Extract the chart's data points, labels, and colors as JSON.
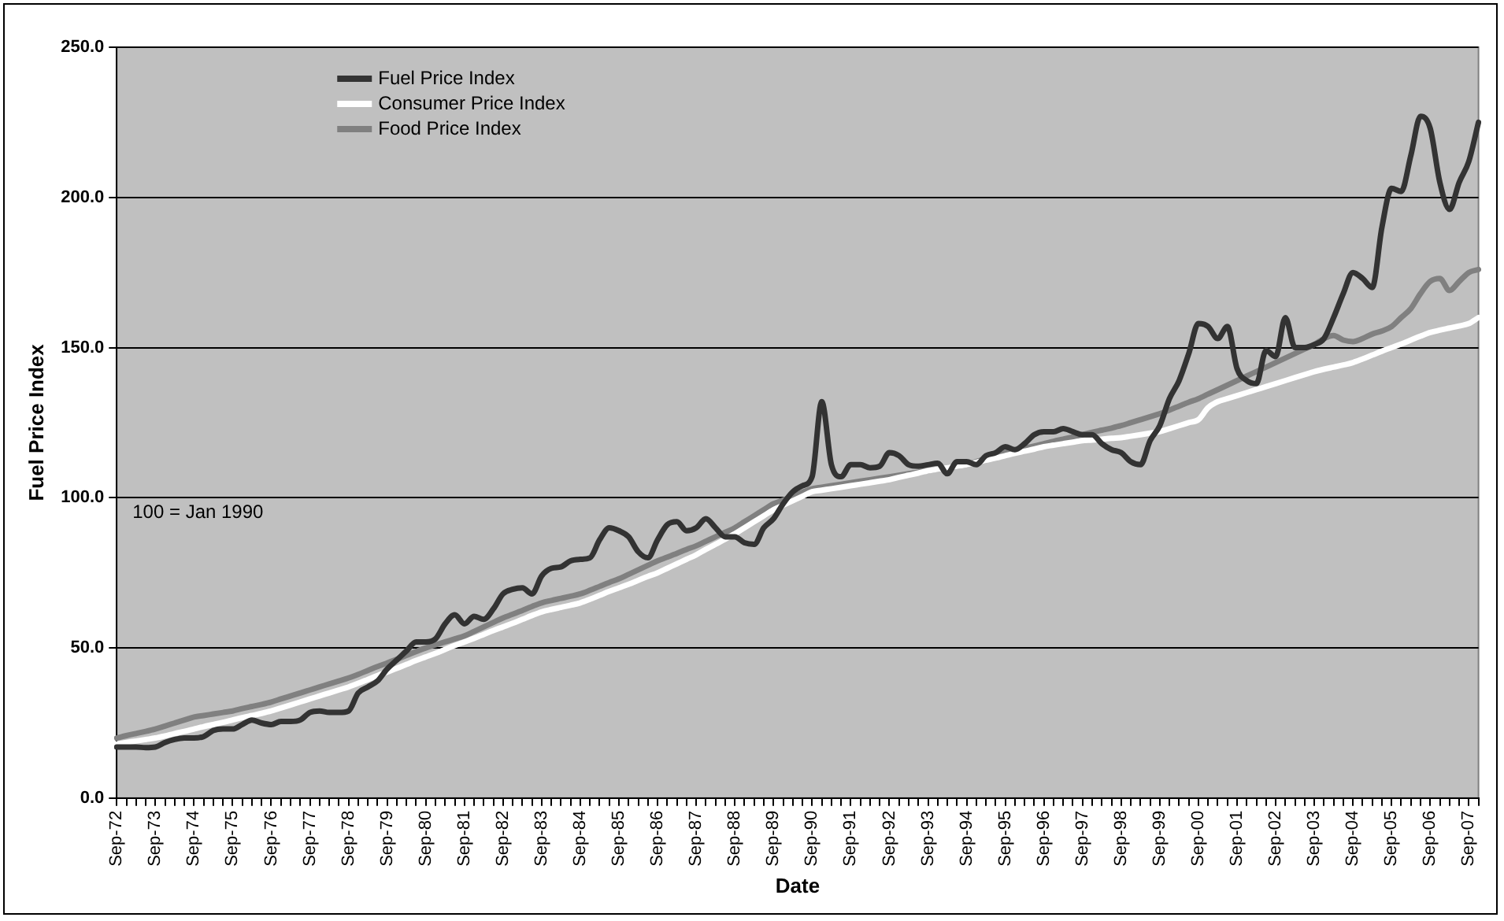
{
  "chart_data": {
    "type": "line",
    "xlabel": "Date",
    "ylabel": "Fuel Price Index",
    "categories": [
      "Sep-72",
      null,
      null,
      null,
      "Sep-73",
      null,
      null,
      null,
      "Sep-74",
      null,
      null,
      null,
      "Sep-75",
      null,
      null,
      null,
      "Sep-76",
      null,
      null,
      null,
      "Sep-77",
      null,
      null,
      null,
      "Sep-78",
      null,
      null,
      null,
      "Sep-79",
      null,
      null,
      null,
      "Sep-80",
      null,
      null,
      null,
      "Sep-81",
      null,
      null,
      null,
      "Sep-82",
      null,
      null,
      null,
      "Sep-83",
      null,
      null,
      null,
      "Sep-84",
      null,
      null,
      null,
      "Sep-85",
      null,
      null,
      null,
      "Sep-86",
      null,
      null,
      null,
      "Sep-87",
      null,
      null,
      null,
      "Sep-88",
      null,
      null,
      null,
      "Sep-89",
      null,
      null,
      null,
      "Sep-90",
      null,
      null,
      null,
      "Sep-91",
      null,
      null,
      null,
      "Sep-92",
      null,
      null,
      null,
      "Sep-93",
      null,
      null,
      null,
      "Sep-94",
      null,
      null,
      null,
      "Sep-95",
      null,
      null,
      null,
      "Sep-96",
      null,
      null,
      null,
      "Sep-97",
      null,
      null,
      null,
      "Sep-98",
      null,
      null,
      null,
      "Sep-99",
      null,
      null,
      null,
      "Sep-00",
      null,
      null,
      null,
      "Sep-01",
      null,
      null,
      null,
      "Sep-02",
      null,
      null,
      null,
      "Sep-03",
      null,
      null,
      null,
      "Sep-04",
      null,
      null,
      null,
      "Sep-05",
      null,
      null,
      null,
      "Sep-06",
      null,
      null,
      null,
      "Sep-07",
      null
    ],
    "series": [
      {
        "name": "Fuel Price Index",
        "color": "#333333",
        "values": [
          17,
          17,
          17,
          16.8,
          17,
          18.5,
          19.5,
          20,
          20,
          20.5,
          22.5,
          23,
          23,
          24.5,
          26,
          25,
          24.5,
          25.5,
          25.5,
          26,
          28.5,
          29,
          28.5,
          28.5,
          29,
          35,
          37,
          39,
          43,
          46,
          49,
          52,
          52,
          53,
          58,
          61,
          58,
          60.5,
          59.5,
          63,
          68,
          69.5,
          70,
          68,
          74,
          76.5,
          77,
          79,
          79.5,
          80,
          86,
          90,
          89,
          87,
          82,
          80,
          86,
          91,
          92,
          89,
          90,
          93,
          90,
          87,
          87,
          85,
          84.5,
          90,
          93,
          98,
          102,
          104,
          107,
          132,
          111,
          107,
          111,
          111,
          110,
          110.5,
          115,
          114,
          111,
          110.5,
          111,
          111.5,
          108,
          112,
          112,
          111,
          114,
          115,
          117,
          116,
          118,
          121,
          122,
          122,
          123,
          122,
          121,
          121,
          118,
          116,
          115,
          112,
          111,
          119,
          124,
          133,
          139,
          148,
          158,
          157,
          153,
          157,
          143,
          139,
          138,
          149,
          147,
          160,
          150,
          150,
          151,
          153,
          160,
          168,
          175,
          173,
          170,
          190,
          203,
          202,
          214,
          227,
          223,
          205,
          196,
          205,
          212,
          225
        ]
      },
      {
        "name": "Consumer Price Index",
        "color": "#ffffff",
        "values": [
          18,
          18.5,
          19,
          19.5,
          20,
          20.7,
          21.5,
          22.2,
          23,
          23.8,
          24.5,
          25.2,
          26,
          26.8,
          27.5,
          28.2,
          29,
          30,
          31,
          32,
          33,
          34,
          35,
          36,
          37,
          38.2,
          39.5,
          40.8,
          42,
          43.2,
          44.5,
          45.8,
          47,
          48.2,
          49.5,
          50.8,
          52,
          53.2,
          54.5,
          55.8,
          57,
          58.2,
          59.5,
          60.8,
          62,
          62.8,
          63.5,
          64.2,
          65,
          66.2,
          67.5,
          68.8,
          70,
          71.2,
          72.5,
          73.8,
          75,
          76.5,
          78,
          79.5,
          81,
          82.8,
          84.5,
          86.2,
          88,
          90,
          92,
          94,
          96,
          97.5,
          99,
          100.5,
          102,
          102.5,
          103,
          103.5,
          104,
          104.5,
          105,
          105.5,
          106,
          106.8,
          107.5,
          108.2,
          109,
          109.5,
          110,
          110.5,
          111,
          111.8,
          112.5,
          113.2,
          114,
          114.8,
          115.5,
          116.2,
          117,
          117.5,
          118,
          118.5,
          119,
          119.2,
          119.5,
          119.8,
          120,
          120.5,
          121,
          121.5,
          122,
          123,
          124,
          125,
          126,
          130,
          132,
          133,
          134,
          135,
          136,
          137,
          138,
          139,
          140,
          141,
          142,
          142.8,
          143.5,
          144.2,
          145,
          146.2,
          147.5,
          148.8,
          150,
          151.2,
          152.5,
          153.8,
          155,
          155.8,
          156.5,
          157.2,
          158,
          160
        ]
      },
      {
        "name": "Food Price Index",
        "color": "#808080",
        "values": [
          20,
          20.8,
          21.5,
          22.2,
          23,
          24,
          25,
          26,
          27,
          27.5,
          28,
          28.5,
          29,
          29.8,
          30.5,
          31.2,
          32,
          33,
          34,
          35,
          36,
          37,
          38,
          39,
          40,
          41.2,
          42.5,
          43.8,
          45,
          46.2,
          47.5,
          48.8,
          50,
          51,
          52,
          53,
          54,
          55.5,
          57,
          58.5,
          60,
          61.2,
          62.5,
          63.8,
          65,
          65.8,
          66.5,
          67.2,
          68,
          69.2,
          70.5,
          71.8,
          73,
          74.5,
          76,
          77.5,
          79,
          80.2,
          81.5,
          82.8,
          84,
          85.5,
          87,
          88.5,
          90,
          92,
          94,
          96,
          98,
          99.2,
          100.5,
          101.8,
          103,
          103.5,
          104,
          104.5,
          105,
          105.5,
          106,
          106.5,
          107,
          107.5,
          108,
          108.5,
          109,
          109.5,
          110,
          110.5,
          111,
          112,
          113,
          114,
          115,
          115.8,
          116.5,
          117.2,
          118,
          118.8,
          119.5,
          120.2,
          121,
          121.8,
          122.5,
          123.2,
          124,
          125,
          126,
          127,
          128,
          129.2,
          130.5,
          131.8,
          133,
          134.5,
          136,
          137.5,
          139,
          140.5,
          142,
          143.5,
          145,
          146.5,
          148,
          149.5,
          151,
          153,
          154,
          152.5,
          152,
          153,
          154.5,
          155.5,
          157,
          160,
          163,
          168,
          172,
          173,
          169,
          172,
          175,
          176
        ]
      }
    ],
    "ylim": [
      0,
      250
    ],
    "yticks": [
      {
        "value": 0,
        "label": "0.0"
      },
      {
        "value": 50,
        "label": "50.0"
      },
      {
        "value": 100,
        "label": "100.0"
      },
      {
        "value": 150,
        "label": "150.0"
      },
      {
        "value": 200,
        "label": "200.0"
      },
      {
        "value": 250,
        "label": "250.0"
      }
    ],
    "grid": "y",
    "legend": "top left",
    "marker": "none",
    "line_style": "solid",
    "annotations": [
      "100 = Jan 1990"
    ]
  }
}
